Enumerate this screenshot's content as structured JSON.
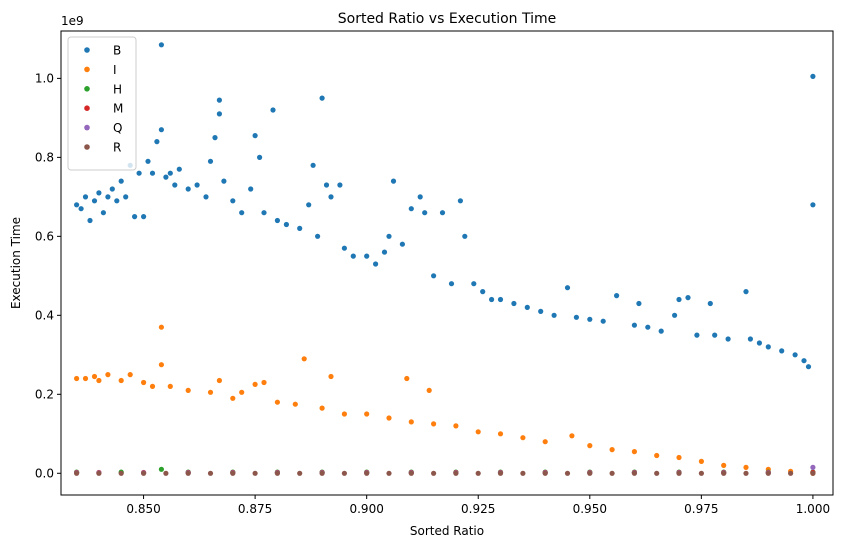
{
  "chart_data": {
    "type": "scatter",
    "title": "Sorted Ratio vs Execution Time",
    "xlabel": "Sorted Ratio",
    "ylabel": "Execution Time",
    "y_offset_text": "1e9",
    "xlim": [
      0.8315,
      1.0045
    ],
    "ylim": [
      -0.055,
      1.12
    ],
    "xticks": [
      0.85,
      0.875,
      0.9,
      0.925,
      0.95,
      0.975,
      1.0
    ],
    "xtick_labels": [
      "0.850",
      "0.875",
      "0.900",
      "0.925",
      "0.950",
      "0.975",
      "1.000"
    ],
    "yticks": [
      0.0,
      0.2,
      0.4,
      0.6,
      0.8,
      1.0
    ],
    "ytick_labels": [
      "0.0",
      "0.2",
      "0.4",
      "0.6",
      "0.8",
      "1.0"
    ],
    "grid": false,
    "legend_position": "top-left",
    "series": [
      {
        "name": "B",
        "color": "#1f77b4",
        "points": [
          [
            0.835,
            0.68
          ],
          [
            0.836,
            0.67
          ],
          [
            0.837,
            0.7
          ],
          [
            0.838,
            0.64
          ],
          [
            0.839,
            0.69
          ],
          [
            0.84,
            0.71
          ],
          [
            0.841,
            0.66
          ],
          [
            0.842,
            0.7
          ],
          [
            0.843,
            0.72
          ],
          [
            0.844,
            0.69
          ],
          [
            0.845,
            0.74
          ],
          [
            0.846,
            0.7
          ],
          [
            0.847,
            0.78
          ],
          [
            0.848,
            0.65
          ],
          [
            0.849,
            0.76
          ],
          [
            0.85,
            0.65
          ],
          [
            0.851,
            0.79
          ],
          [
            0.852,
            0.76
          ],
          [
            0.853,
            0.84
          ],
          [
            0.854,
            1.085
          ],
          [
            0.854,
            0.87
          ],
          [
            0.855,
            0.75
          ],
          [
            0.856,
            0.76
          ],
          [
            0.857,
            0.73
          ],
          [
            0.858,
            0.77
          ],
          [
            0.86,
            0.72
          ],
          [
            0.862,
            0.73
          ],
          [
            0.864,
            0.7
          ],
          [
            0.865,
            0.79
          ],
          [
            0.866,
            0.85
          ],
          [
            0.867,
            0.945
          ],
          [
            0.867,
            0.91
          ],
          [
            0.868,
            0.74
          ],
          [
            0.87,
            0.69
          ],
          [
            0.872,
            0.66
          ],
          [
            0.874,
            0.72
          ],
          [
            0.875,
            0.855
          ],
          [
            0.876,
            0.8
          ],
          [
            0.877,
            0.66
          ],
          [
            0.879,
            0.92
          ],
          [
            0.88,
            0.64
          ],
          [
            0.882,
            0.63
          ],
          [
            0.885,
            0.62
          ],
          [
            0.887,
            0.68
          ],
          [
            0.888,
            0.78
          ],
          [
            0.889,
            0.6
          ],
          [
            0.89,
            0.95
          ],
          [
            0.891,
            0.73
          ],
          [
            0.892,
            0.7
          ],
          [
            0.894,
            0.73
          ],
          [
            0.895,
            0.57
          ],
          [
            0.897,
            0.55
          ],
          [
            0.9,
            0.55
          ],
          [
            0.902,
            0.53
          ],
          [
            0.904,
            0.56
          ],
          [
            0.905,
            0.6
          ],
          [
            0.906,
            0.74
          ],
          [
            0.908,
            0.58
          ],
          [
            0.91,
            0.67
          ],
          [
            0.912,
            0.7
          ],
          [
            0.913,
            0.66
          ],
          [
            0.915,
            0.5
          ],
          [
            0.917,
            0.66
          ],
          [
            0.919,
            0.48
          ],
          [
            0.921,
            0.69
          ],
          [
            0.922,
            0.6
          ],
          [
            0.924,
            0.48
          ],
          [
            0.926,
            0.46
          ],
          [
            0.928,
            0.44
          ],
          [
            0.93,
            0.44
          ],
          [
            0.933,
            0.43
          ],
          [
            0.936,
            0.42
          ],
          [
            0.939,
            0.41
          ],
          [
            0.942,
            0.4
          ],
          [
            0.945,
            0.47
          ],
          [
            0.947,
            0.395
          ],
          [
            0.95,
            0.39
          ],
          [
            0.953,
            0.385
          ],
          [
            0.956,
            0.45
          ],
          [
            0.96,
            0.375
          ],
          [
            0.961,
            0.43
          ],
          [
            0.963,
            0.37
          ],
          [
            0.966,
            0.36
          ],
          [
            0.969,
            0.4
          ],
          [
            0.97,
            0.44
          ],
          [
            0.972,
            0.445
          ],
          [
            0.974,
            0.35
          ],
          [
            0.977,
            0.43
          ],
          [
            0.978,
            0.35
          ],
          [
            0.981,
            0.34
          ],
          [
            0.985,
            0.46
          ],
          [
            0.986,
            0.34
          ],
          [
            0.988,
            0.33
          ],
          [
            0.99,
            0.32
          ],
          [
            0.993,
            0.31
          ],
          [
            0.996,
            0.3
          ],
          [
            0.998,
            0.285
          ],
          [
            0.999,
            0.27
          ],
          [
            1.0,
            1.005
          ],
          [
            1.0,
            0.68
          ]
        ]
      },
      {
        "name": "I",
        "color": "#ff7f0e",
        "points": [
          [
            0.835,
            0.24
          ],
          [
            0.837,
            0.24
          ],
          [
            0.839,
            0.245
          ],
          [
            0.84,
            0.235
          ],
          [
            0.842,
            0.25
          ],
          [
            0.845,
            0.235
          ],
          [
            0.847,
            0.25
          ],
          [
            0.85,
            0.23
          ],
          [
            0.852,
            0.22
          ],
          [
            0.854,
            0.37
          ],
          [
            0.854,
            0.275
          ],
          [
            0.856,
            0.22
          ],
          [
            0.86,
            0.21
          ],
          [
            0.865,
            0.205
          ],
          [
            0.867,
            0.235
          ],
          [
            0.87,
            0.19
          ],
          [
            0.872,
            0.205
          ],
          [
            0.875,
            0.225
          ],
          [
            0.877,
            0.23
          ],
          [
            0.88,
            0.18
          ],
          [
            0.884,
            0.175
          ],
          [
            0.886,
            0.29
          ],
          [
            0.89,
            0.165
          ],
          [
            0.892,
            0.245
          ],
          [
            0.895,
            0.15
          ],
          [
            0.9,
            0.15
          ],
          [
            0.905,
            0.14
          ],
          [
            0.909,
            0.24
          ],
          [
            0.91,
            0.13
          ],
          [
            0.914,
            0.21
          ],
          [
            0.915,
            0.125
          ],
          [
            0.92,
            0.12
          ],
          [
            0.925,
            0.105
          ],
          [
            0.93,
            0.1
          ],
          [
            0.935,
            0.09
          ],
          [
            0.94,
            0.08
          ],
          [
            0.946,
            0.095
          ],
          [
            0.95,
            0.07
          ],
          [
            0.955,
            0.06
          ],
          [
            0.96,
            0.055
          ],
          [
            0.965,
            0.045
          ],
          [
            0.97,
            0.04
          ],
          [
            0.975,
            0.03
          ],
          [
            0.98,
            0.02
          ],
          [
            0.985,
            0.015
          ],
          [
            0.99,
            0.01
          ],
          [
            0.995,
            0.005
          ],
          [
            1.0,
            0.0
          ]
        ]
      },
      {
        "name": "H",
        "color": "#2ca02c",
        "points": [
          [
            0.835,
            0.003
          ],
          [
            0.845,
            0.003
          ],
          [
            0.854,
            0.01
          ],
          [
            0.86,
            0.003
          ],
          [
            0.87,
            0.003
          ],
          [
            0.88,
            0.003
          ],
          [
            0.89,
            0.003
          ],
          [
            0.9,
            0.003
          ],
          [
            0.91,
            0.003
          ],
          [
            0.92,
            0.003
          ],
          [
            0.93,
            0.003
          ],
          [
            0.94,
            0.003
          ],
          [
            0.95,
            0.003
          ],
          [
            0.96,
            0.003
          ],
          [
            0.97,
            0.003
          ],
          [
            0.98,
            0.003
          ],
          [
            0.99,
            0.003
          ],
          [
            1.0,
            0.003
          ]
        ]
      },
      {
        "name": "M",
        "color": "#d62728",
        "points": [
          [
            0.835,
            0.002
          ],
          [
            0.84,
            0.002
          ],
          [
            0.85,
            0.002
          ],
          [
            0.86,
            0.002
          ],
          [
            0.87,
            0.002
          ],
          [
            0.88,
            0.002
          ],
          [
            0.89,
            0.002
          ],
          [
            0.9,
            0.002
          ],
          [
            0.91,
            0.002
          ],
          [
            0.92,
            0.002
          ],
          [
            0.93,
            0.002
          ],
          [
            0.94,
            0.002
          ],
          [
            0.95,
            0.002
          ],
          [
            0.96,
            0.002
          ],
          [
            0.97,
            0.002
          ],
          [
            0.98,
            0.002
          ],
          [
            0.99,
            0.002
          ],
          [
            1.0,
            0.002
          ]
        ]
      },
      {
        "name": "Q",
        "color": "#9467bd",
        "points": [
          [
            0.835,
            0.001
          ],
          [
            0.84,
            0.001
          ],
          [
            0.85,
            0.001
          ],
          [
            0.86,
            0.001
          ],
          [
            0.87,
            0.001
          ],
          [
            0.88,
            0.001
          ],
          [
            0.89,
            0.001
          ],
          [
            0.9,
            0.001
          ],
          [
            0.91,
            0.001
          ],
          [
            0.92,
            0.001
          ],
          [
            0.93,
            0.001
          ],
          [
            0.94,
            0.001
          ],
          [
            0.95,
            0.001
          ],
          [
            0.96,
            0.001
          ],
          [
            0.97,
            0.001
          ],
          [
            0.98,
            0.001
          ],
          [
            0.99,
            0.001
          ],
          [
            1.0,
            0.015
          ]
        ]
      },
      {
        "name": "R",
        "color": "#8c564b",
        "points": [
          [
            0.835,
            0.0
          ],
          [
            0.84,
            0.0
          ],
          [
            0.845,
            0.0
          ],
          [
            0.85,
            0.0
          ],
          [
            0.855,
            0.0
          ],
          [
            0.86,
            0.0
          ],
          [
            0.865,
            0.0
          ],
          [
            0.87,
            0.0
          ],
          [
            0.875,
            0.0
          ],
          [
            0.88,
            0.0
          ],
          [
            0.885,
            0.0
          ],
          [
            0.89,
            0.0
          ],
          [
            0.895,
            0.0
          ],
          [
            0.9,
            0.0
          ],
          [
            0.905,
            0.0
          ],
          [
            0.91,
            0.0
          ],
          [
            0.915,
            0.0
          ],
          [
            0.92,
            0.0
          ],
          [
            0.925,
            0.0
          ],
          [
            0.93,
            0.0
          ],
          [
            0.935,
            0.0
          ],
          [
            0.94,
            0.0
          ],
          [
            0.945,
            0.0
          ],
          [
            0.95,
            0.0
          ],
          [
            0.955,
            0.0
          ],
          [
            0.96,
            0.0
          ],
          [
            0.965,
            0.0
          ],
          [
            0.97,
            0.0
          ],
          [
            0.975,
            0.0
          ],
          [
            0.98,
            0.0
          ],
          [
            0.985,
            0.0
          ],
          [
            0.99,
            0.0
          ],
          [
            0.995,
            0.0
          ],
          [
            1.0,
            0.0
          ]
        ]
      }
    ]
  }
}
